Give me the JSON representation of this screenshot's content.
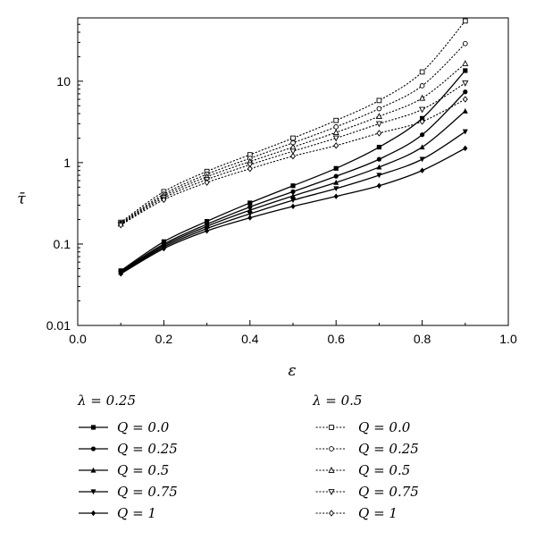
{
  "chart_data": {
    "type": "line",
    "xlabel": "ε",
    "ylabel": "τ̄",
    "xlim": [
      0.0,
      1.0
    ],
    "ylim": [
      0.01,
      60
    ],
    "yscale": "log",
    "grid": false,
    "x_ticks": [
      "0.0",
      "0.2",
      "0.4",
      "0.6",
      "0.8",
      "1.0"
    ],
    "y_ticks": [
      "0.01",
      "0.1",
      "1",
      "10"
    ],
    "x_tick_values": [
      0.0,
      0.2,
      0.4,
      0.6,
      0.8,
      1.0
    ],
    "y_tick_values": [
      0.01,
      0.1,
      1,
      10
    ],
    "legend_placement": "bottom",
    "groups": [
      {
        "title": "λ = 0.25",
        "line_style": "solid",
        "series": [
          {
            "name": "Q = 0.0",
            "marker": "square",
            "x": [
              0.1,
              0.2,
              0.3,
              0.4,
              0.5,
              0.6,
              0.7,
              0.8,
              0.9
            ],
            "y": [
              0.047,
              0.107,
              0.19,
              0.32,
              0.52,
              0.85,
              1.55,
              3.5,
              13.5
            ]
          },
          {
            "name": "Q = 0.25",
            "marker": "circle",
            "x": [
              0.1,
              0.2,
              0.3,
              0.4,
              0.5,
              0.6,
              0.7,
              0.8,
              0.9
            ],
            "y": [
              0.046,
              0.1,
              0.175,
              0.285,
              0.44,
              0.68,
              1.1,
              2.2,
              7.4
            ]
          },
          {
            "name": "Q = 0.5",
            "marker": "triangle-up",
            "x": [
              0.1,
              0.2,
              0.3,
              0.4,
              0.5,
              0.6,
              0.7,
              0.8,
              0.9
            ],
            "y": [
              0.045,
              0.096,
              0.165,
              0.26,
              0.39,
              0.57,
              0.88,
              1.55,
              4.3
            ]
          },
          {
            "name": "Q = 0.75",
            "marker": "triangle-down",
            "x": [
              0.1,
              0.2,
              0.3,
              0.4,
              0.5,
              0.6,
              0.7,
              0.8,
              0.9
            ],
            "y": [
              0.044,
              0.092,
              0.155,
              0.235,
              0.345,
              0.48,
              0.7,
              1.1,
              2.4
            ]
          },
          {
            "name": "Q = 1",
            "marker": "diamond",
            "x": [
              0.1,
              0.2,
              0.3,
              0.4,
              0.5,
              0.6,
              0.7,
              0.8,
              0.9
            ],
            "y": [
              0.043,
              0.088,
              0.145,
              0.21,
              0.29,
              0.385,
              0.52,
              0.8,
              1.5
            ]
          }
        ]
      },
      {
        "title": "λ = 0.5",
        "line_style": "dotted",
        "series": [
          {
            "name": "Q = 0.0",
            "marker": "square-open",
            "x": [
              0.1,
              0.2,
              0.3,
              0.4,
              0.5,
              0.6,
              0.7,
              0.8,
              0.9
            ],
            "y": [
              0.185,
              0.44,
              0.78,
              1.25,
              2.0,
              3.3,
              5.8,
              13.0,
              55.0
            ]
          },
          {
            "name": "Q = 0.25",
            "marker": "circle-open",
            "x": [
              0.1,
              0.2,
              0.3,
              0.4,
              0.5,
              0.6,
              0.7,
              0.8,
              0.9
            ],
            "y": [
              0.18,
              0.41,
              0.72,
              1.13,
              1.75,
              2.75,
              4.6,
              8.8,
              29.0
            ]
          },
          {
            "name": "Q = 0.5",
            "marker": "triangle-up-open",
            "x": [
              0.1,
              0.2,
              0.3,
              0.4,
              0.5,
              0.6,
              0.7,
              0.8,
              0.9
            ],
            "y": [
              0.177,
              0.39,
              0.67,
              1.03,
              1.55,
              2.35,
              3.7,
              6.2,
              16.5
            ]
          },
          {
            "name": "Q = 0.75",
            "marker": "triangle-down-open",
            "x": [
              0.1,
              0.2,
              0.3,
              0.4,
              0.5,
              0.6,
              0.7,
              0.8,
              0.9
            ],
            "y": [
              0.174,
              0.37,
              0.62,
              0.94,
              1.38,
              2.0,
              3.0,
              4.5,
              9.5
            ]
          },
          {
            "name": "Q = 1",
            "marker": "diamond-open",
            "x": [
              0.1,
              0.2,
              0.3,
              0.4,
              0.5,
              0.6,
              0.7,
              0.8,
              0.9
            ],
            "y": [
              0.171,
              0.35,
              0.57,
              0.84,
              1.2,
              1.62,
              2.3,
              3.2,
              6.0
            ]
          }
        ]
      }
    ]
  }
}
